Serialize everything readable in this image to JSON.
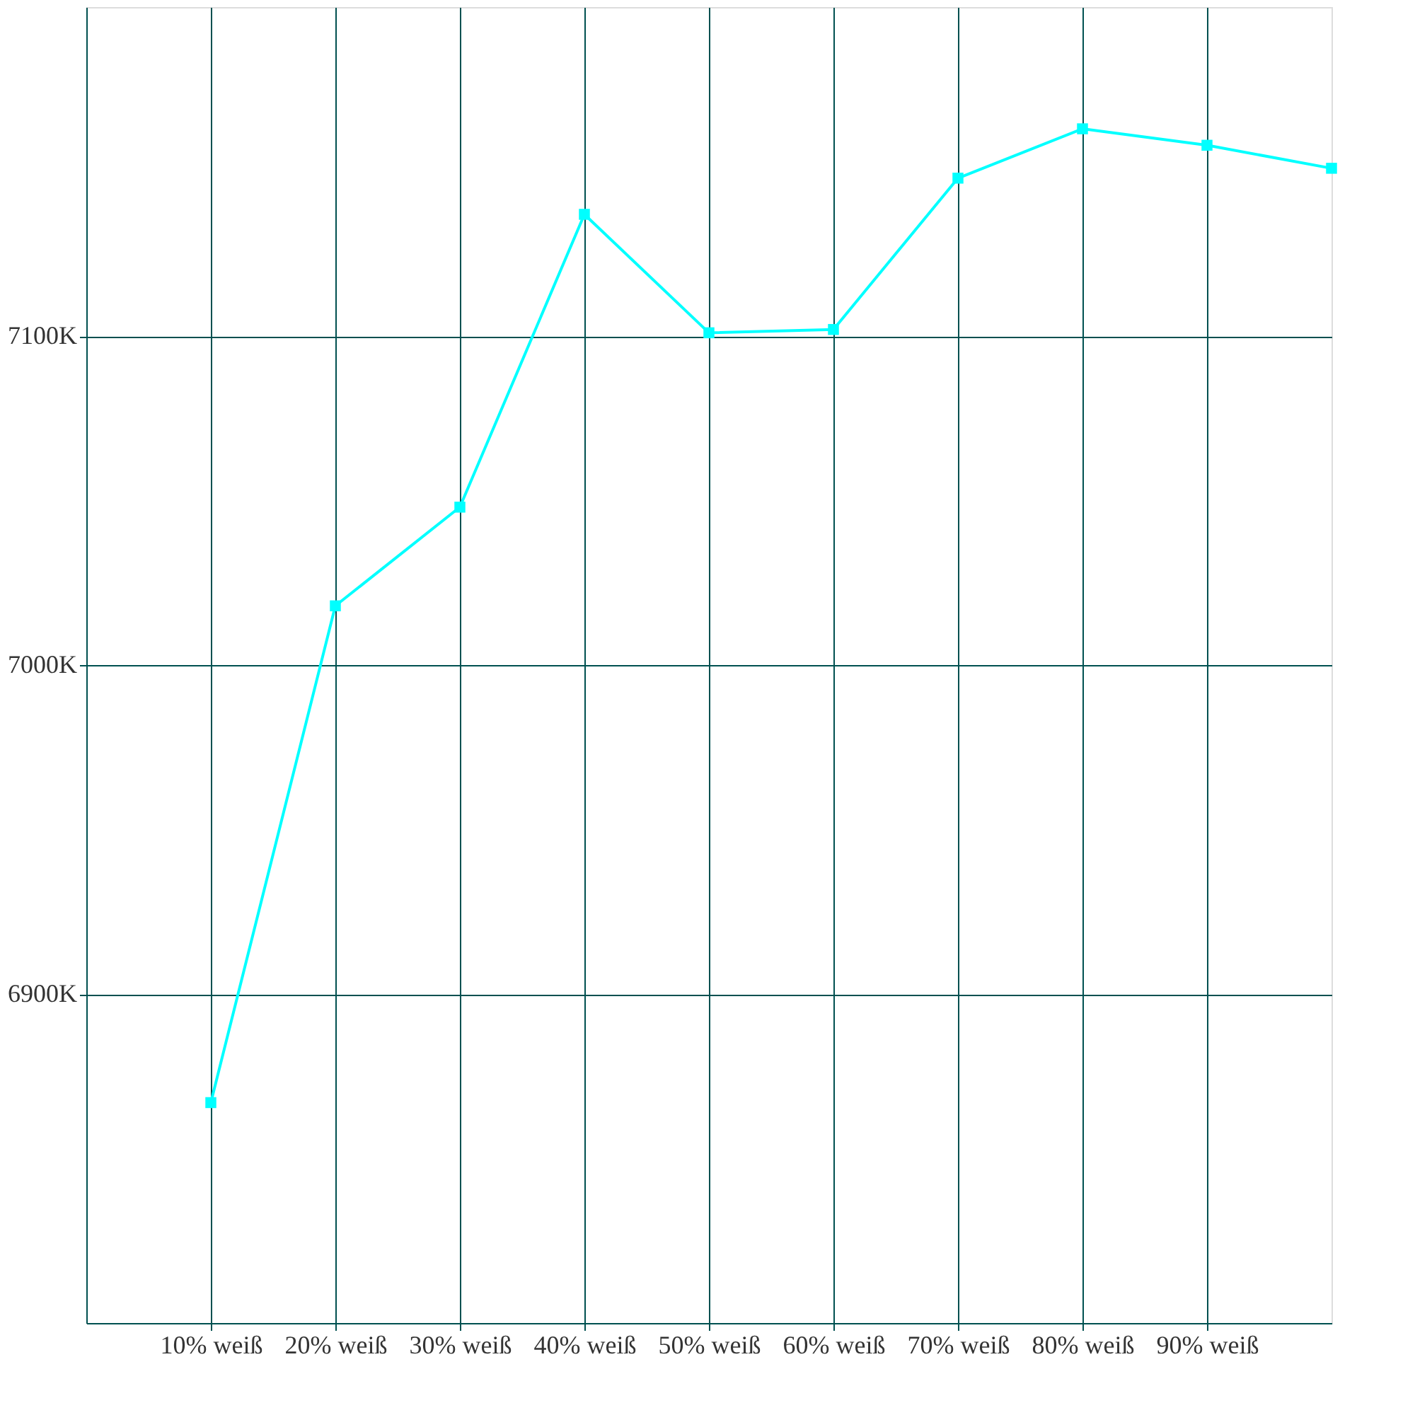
{
  "chart_data": {
    "type": "line",
    "x": [
      10,
      20,
      30,
      40,
      50,
      60,
      70,
      80,
      90,
      100
    ],
    "series": [
      {
        "color": "#00ffff",
        "values": [
          6867,
          7018,
          7048,
          7137,
          7101,
          7102,
          7148,
          7163,
          7158,
          7151
        ]
      }
    ],
    "xlim": [
      0,
      100
    ],
    "xticks": [
      {
        "value": 10,
        "label": "10% weiß"
      },
      {
        "value": 20,
        "label": "20% weiß"
      },
      {
        "value": 30,
        "label": "30% weiß"
      },
      {
        "value": 40,
        "label": "40% weiß"
      },
      {
        "value": 50,
        "label": "50% weiß"
      },
      {
        "value": 60,
        "label": "60% weiß"
      },
      {
        "value": 70,
        "label": "70% weiß"
      },
      {
        "value": 80,
        "label": "80% weiß"
      },
      {
        "value": 90,
        "label": "90% weiß"
      }
    ],
    "ylim": [
      6800,
      7200
    ],
    "yticks": [
      {
        "value": 6900,
        "label": "6900K"
      },
      {
        "value": 7000,
        "label": "7000K"
      },
      {
        "value": 7100,
        "label": "7100K"
      }
    ],
    "grid": true,
    "marker": "square",
    "line_style": "solid",
    "legend": false
  }
}
